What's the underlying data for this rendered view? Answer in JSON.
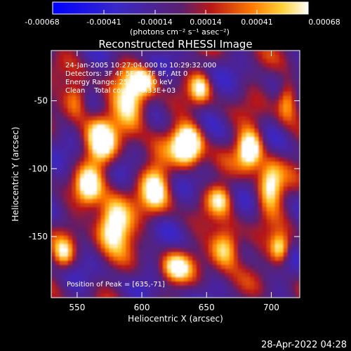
{
  "colorbar": {
    "tick_labels": [
      "-0.00068",
      "-0.00041",
      "-0.00014",
      "0.00014",
      "0.00041",
      "0.00068"
    ],
    "unit_label": "(photons cm⁻² s⁻¹ asec⁻²)"
  },
  "chart_data": {
    "type": "heatmap",
    "title": "Reconstructed RHESSI Image",
    "xlabel": "Heliocentric X (arcsec)",
    "ylabel": "Heliocentric Y (arcsec)",
    "xlim": [
      530,
      722
    ],
    "ylim": [
      -195,
      -13
    ],
    "x_ticks": [
      550,
      600,
      650,
      700
    ],
    "y_ticks": [
      -50,
      -100,
      -150
    ],
    "colorbar_range": [
      -0.00068,
      0.00068
    ],
    "annotations": [
      "24-Jan-2005 10:27:04.000 to 10:29:32.000",
      "Detectors: 3F 4F 5F 6F 7F 8F, Att 0",
      "Energy Range: 25.0 - 50.0 keV",
      "Clean    Total counts: 6.33E+03"
    ],
    "peak_label": "Position of Peak = [635,-71]",
    "peak": [
      635,
      -71
    ]
  },
  "footer": {
    "timestamp": "28-Apr-2022 04:28"
  }
}
